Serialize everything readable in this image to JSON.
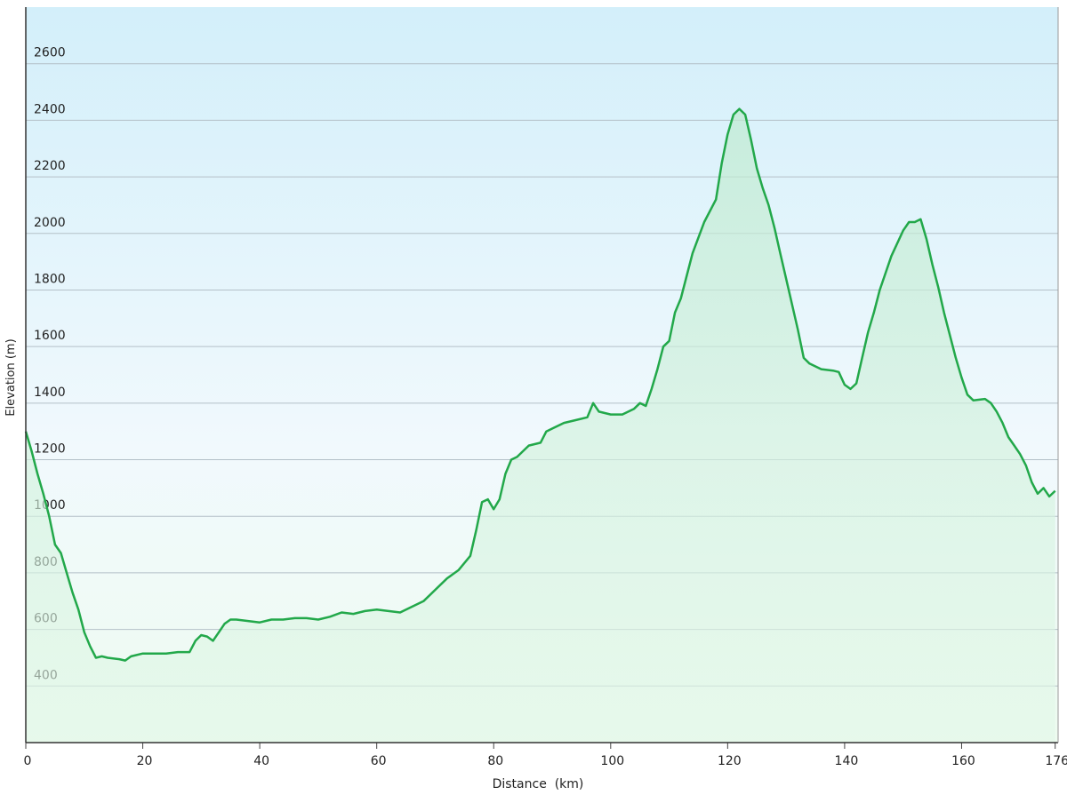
{
  "chart_data": {
    "type": "area-line",
    "x_label": "Distance  (km)",
    "y_label": "Elevation (m)",
    "color": "#22a84a",
    "x": [
      0,
      1,
      2,
      3,
      4,
      5,
      6,
      7,
      8,
      9,
      10,
      11,
      12,
      13,
      14,
      16,
      17,
      18,
      20,
      22,
      24,
      26,
      28,
      29,
      30,
      31,
      32,
      33,
      34,
      35,
      36,
      38,
      40,
      42,
      44,
      46,
      48,
      50,
      52,
      54,
      56,
      58,
      60,
      62,
      64,
      66,
      68,
      70,
      72,
      74,
      76,
      77,
      78,
      79,
      80,
      81,
      82,
      83,
      84,
      86,
      88,
      89,
      90,
      92,
      94,
      96,
      97,
      98,
      100,
      102,
      104,
      105,
      106,
      107,
      108,
      109,
      110,
      111,
      112,
      113,
      114,
      116,
      118,
      119,
      120,
      121,
      122,
      123,
      124,
      125,
      126,
      127,
      128,
      129,
      130,
      131,
      132,
      133,
      134,
      136,
      138,
      139,
      140,
      141,
      142,
      143,
      144,
      145,
      146,
      148,
      150,
      151,
      152,
      153,
      154,
      155,
      156,
      157,
      158,
      159,
      160,
      161,
      162,
      164,
      165,
      166,
      167,
      168,
      169,
      170,
      171,
      172,
      173,
      174,
      175,
      176
    ],
    "series": [
      {
        "values": [
          1300,
          1230,
          1150,
          1080,
          1000,
          900,
          870,
          800,
          730,
          670,
          590,
          540,
          500,
          505,
          500,
          495,
          490,
          505,
          515,
          515,
          515,
          520,
          520,
          560,
          580,
          575,
          560,
          590,
          620,
          635,
          635,
          630,
          625,
          635,
          635,
          640,
          640,
          635,
          645,
          660,
          655,
          665,
          670,
          665,
          660,
          680,
          700,
          740,
          780,
          810,
          860,
          950,
          1050,
          1060,
          1025,
          1060,
          1150,
          1200,
          1210,
          1250,
          1260,
          1300,
          1310,
          1330,
          1340,
          1350,
          1400,
          1370,
          1360,
          1360,
          1380,
          1400,
          1390,
          1450,
          1520,
          1600,
          1620,
          1720,
          1770,
          1850,
          1930,
          2040,
          2120,
          2250,
          2350,
          2420,
          2440,
          2420,
          2330,
          2230,
          2160,
          2100,
          2020,
          1930,
          1840,
          1750,
          1660,
          1560,
          1540,
          1520,
          1515,
          1510,
          1465,
          1450,
          1470,
          1560,
          1650,
          1720,
          1800,
          1920,
          2010,
          2040,
          2040,
          2050,
          1980,
          1890,
          1810,
          1720,
          1640,
          1560,
          1490,
          1430,
          1410,
          1415,
          1400,
          1370,
          1330,
          1280,
          1250,
          1220,
          1180,
          1120,
          1080,
          1100,
          1070,
          1090
        ]
      }
    ],
    "xlim": [
      0,
      176.5
    ],
    "xticks": [
      0,
      20,
      40,
      60,
      80,
      100,
      120,
      140,
      160,
      176
    ],
    "ylim": [
      200,
      2800
    ],
    "yticks": [
      400,
      600,
      800,
      1000,
      1200,
      1400,
      1600,
      1800,
      2000,
      2200,
      2400,
      2600
    ],
    "grid": true
  }
}
